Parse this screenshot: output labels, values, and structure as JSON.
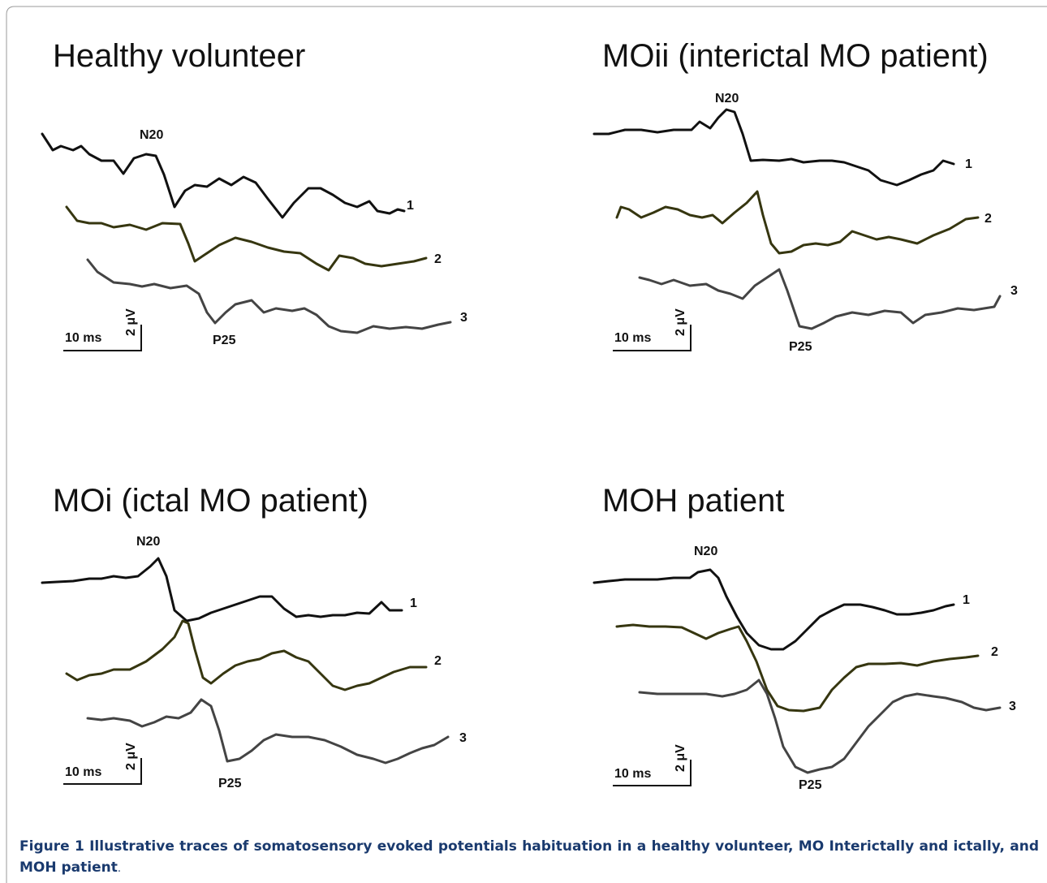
{
  "panels": [
    {
      "title": "Healthy volunteer",
      "peaks": [
        "N20",
        "P25"
      ],
      "traces": [
        "1",
        "2",
        "3"
      ],
      "time_scale": "10 ms",
      "amplitude_scale": "2 μV"
    },
    {
      "title": "MOii (interictal MO patient)",
      "peaks": [
        "N20",
        "P25"
      ],
      "traces": [
        "1",
        "2",
        "3"
      ],
      "time_scale": "10 ms",
      "amplitude_scale": "2 μV"
    },
    {
      "title": "MOi (ictal MO patient)",
      "peaks": [
        "N20",
        "P25"
      ],
      "traces": [
        "1",
        "2",
        "3"
      ],
      "time_scale": "10 ms",
      "amplitude_scale": "2 μV"
    },
    {
      "title": "MOH patient",
      "peaks": [
        "N20",
        "P25"
      ],
      "traces": [
        "1",
        "2",
        "3"
      ],
      "time_scale": "10 ms",
      "amplitude_scale": "2 μV"
    }
  ],
  "caption": {
    "label": "Figure 1",
    "text": "Illustrative traces of somatosensory evoked potentials habituation in a healthy volunteer, MO Interictally and ictally, and MOH patient",
    "end": "."
  }
}
